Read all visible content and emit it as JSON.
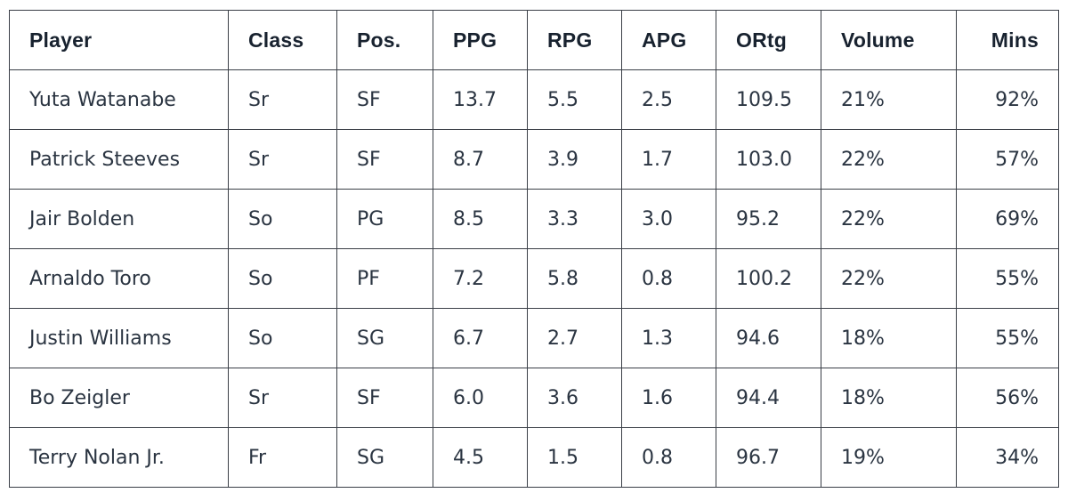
{
  "table": {
    "columns": [
      "Player",
      "Class",
      "Pos.",
      "PPG",
      "RPG",
      "APG",
      "ORtg",
      "Volume",
      "Mins"
    ],
    "rows": [
      [
        "Yuta Watanabe",
        "Sr",
        "SF",
        "13.7",
        "5.5",
        "2.5",
        "109.5",
        "21%",
        "92%"
      ],
      [
        "Patrick Steeves",
        "Sr",
        "SF",
        "8.7",
        "3.9",
        "1.7",
        "103.0",
        "22%",
        "57%"
      ],
      [
        "Jair Bolden",
        "So",
        "PG",
        "8.5",
        "3.3",
        "3.0",
        "95.2",
        "22%",
        "69%"
      ],
      [
        "Arnaldo Toro",
        "So",
        "PF",
        "7.2",
        "5.8",
        "0.8",
        "100.2",
        "22%",
        "55%"
      ],
      [
        "Justin Williams",
        "So",
        "SG",
        "6.7",
        "2.7",
        "1.3",
        "94.6",
        "18%",
        "55%"
      ],
      [
        "Bo Zeigler",
        "Sr",
        "SF",
        "6.0",
        "3.6",
        "1.6",
        "94.4",
        "18%",
        "56%"
      ],
      [
        "Terry Nolan Jr.",
        "Fr",
        "SG",
        "4.5",
        "1.5",
        "0.8",
        "96.7",
        "19%",
        "34%"
      ]
    ]
  }
}
